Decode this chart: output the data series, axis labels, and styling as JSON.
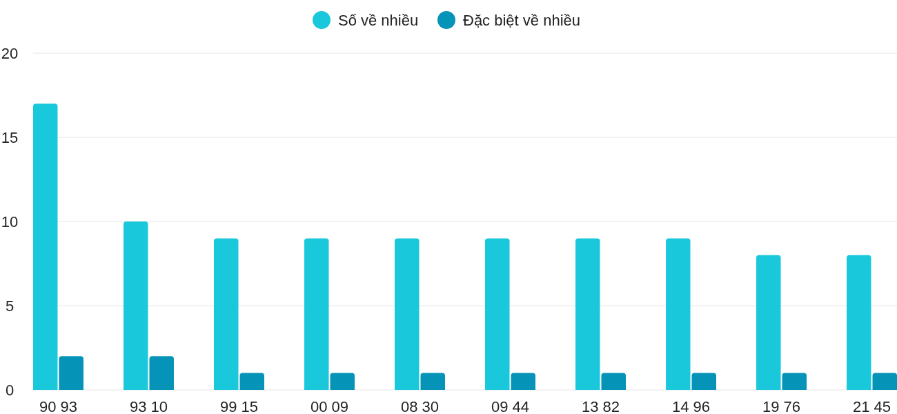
{
  "chart_data": {
    "type": "bar",
    "categories": [
      "90 93",
      "93 10",
      "99 15",
      "00 09",
      "08 30",
      "09 44",
      "13 82",
      "14 96",
      "19 76",
      "21 45"
    ],
    "series": [
      {
        "name": "Số về nhiều",
        "color": "#1ac8db",
        "values": [
          17,
          10,
          9,
          9,
          9,
          9,
          9,
          9,
          8,
          8
        ]
      },
      {
        "name": "Đặc biệt về nhiều",
        "color": "#0693b8",
        "values": [
          2,
          2,
          1,
          1,
          1,
          1,
          1,
          1,
          1,
          1
        ]
      }
    ],
    "ylim": [
      0,
      20
    ],
    "yticks": [
      0,
      5,
      10,
      15,
      20
    ],
    "grid": "y",
    "legend": "top"
  }
}
